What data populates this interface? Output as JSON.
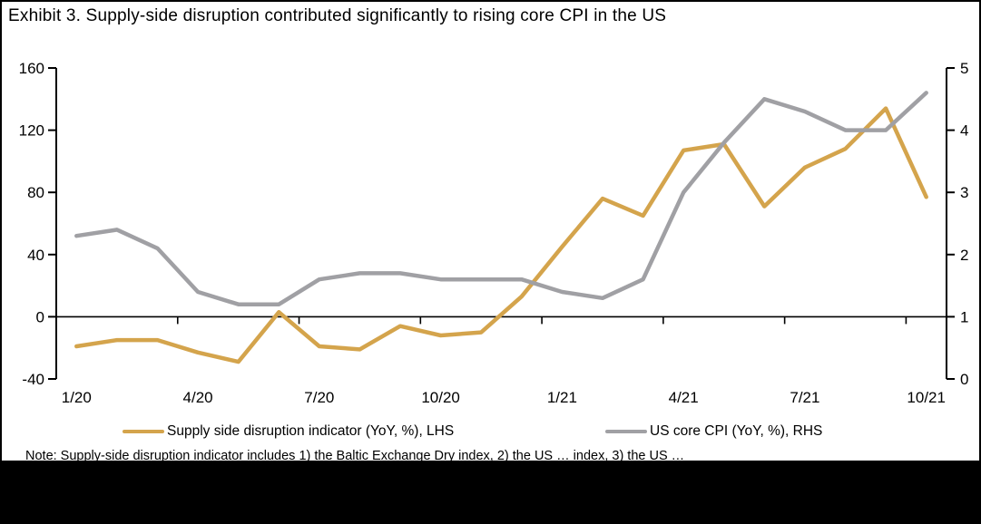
{
  "title": "Exhibit 3. Supply-side disruption contributed significantly to rising core CPI in the US",
  "note_partial": "Note: Supply-side disruption indicator includes 1) the Baltic Exchange Dry index, 2) the US … index, 3) the US …",
  "colors": {
    "supply_line": "#D4A44C",
    "cpi_line": "#A0A0A4",
    "axis": "#000000",
    "background": "#FFFFFF",
    "redaction_bar": "#000000"
  },
  "chart_data": {
    "type": "line",
    "x_months": [
      "1/20",
      "2/20",
      "3/20",
      "4/20",
      "5/20",
      "6/20",
      "7/20",
      "8/20",
      "9/20",
      "10/20",
      "11/20",
      "12/20",
      "1/21",
      "2/21",
      "3/21",
      "4/21",
      "5/21",
      "6/21",
      "7/21",
      "8/21",
      "9/21",
      "10/21"
    ],
    "x_tick_labels": [
      "1/20",
      "4/20",
      "7/20",
      "10/20",
      "1/21",
      "4/21",
      "7/21",
      "10/21"
    ],
    "x_tick_positions": [
      0,
      3,
      6,
      9,
      12,
      15,
      18,
      21
    ],
    "series": [
      {
        "name": "Supply side disruption indicator (YoY, %), LHS",
        "axis": "left",
        "color": "#D4A44C",
        "values": [
          -19,
          -15,
          -15,
          -23,
          -29,
          3,
          -19,
          -21,
          -6,
          -12,
          -10,
          13,
          45,
          76,
          65,
          107,
          111,
          71,
          96,
          108,
          134,
          77
        ]
      },
      {
        "name": "US core CPI (YoY, %), RHS",
        "axis": "right",
        "color": "#A0A0A4",
        "values": [
          2.3,
          2.4,
          2.1,
          1.4,
          1.2,
          1.2,
          1.6,
          1.7,
          1.7,
          1.6,
          1.6,
          1.6,
          1.4,
          1.3,
          1.6,
          3.0,
          3.8,
          4.5,
          4.3,
          4.0,
          4.0,
          4.6
        ]
      }
    ],
    "left_axis": {
      "min": -40,
      "max": 160,
      "ticks": [
        160,
        120,
        80,
        40,
        0,
        -40
      ]
    },
    "right_axis": {
      "min": 0,
      "max": 5,
      "ticks": [
        5,
        4,
        3,
        2,
        1,
        0
      ]
    },
    "grid": false,
    "legend_position": "bottom"
  }
}
